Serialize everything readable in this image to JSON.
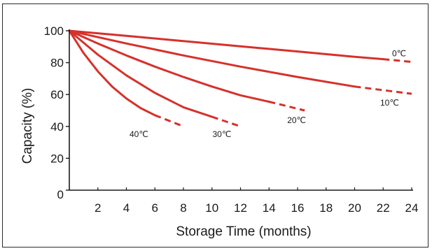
{
  "chart_data": {
    "type": "line",
    "xlabel": "Storage Time (months)",
    "ylabel": "Capacity (%)",
    "xlim": [
      0,
      24
    ],
    "ylim": [
      0,
      100
    ],
    "x_ticks": [
      "2",
      "4",
      "6",
      "8",
      "10",
      "12",
      "14",
      "16",
      "18",
      "20",
      "22",
      "24"
    ],
    "y_ticks": [
      "0",
      "20",
      "40",
      "60",
      "80",
      "100"
    ],
    "grid": false,
    "line_color": "#d6312b",
    "series": [
      {
        "name": "0℃",
        "solid": [
          [
            0,
            100
          ],
          [
            4,
            96.8
          ],
          [
            8,
            93.5
          ],
          [
            12,
            90.2
          ],
          [
            16,
            87.0
          ],
          [
            20,
            83.7
          ],
          [
            22,
            82.2
          ]
        ],
        "dashed": [
          [
            22,
            82.2
          ],
          [
            24,
            80.5
          ]
        ]
      },
      {
        "name": "10℃",
        "solid": [
          [
            0,
            100
          ],
          [
            4,
            92.0
          ],
          [
            8,
            84.5
          ],
          [
            12,
            77.5
          ],
          [
            16,
            71.0
          ],
          [
            20,
            65.0
          ]
        ],
        "dashed": [
          [
            20,
            65.0
          ],
          [
            24,
            60.5
          ]
        ]
      },
      {
        "name": "20℃",
        "solid": [
          [
            0,
            100
          ],
          [
            2,
            92.0
          ],
          [
            4,
            84.5
          ],
          [
            6,
            77.5
          ],
          [
            8,
            71.0
          ],
          [
            10,
            65.0
          ],
          [
            12,
            59.5
          ],
          [
            14,
            55.5
          ]
        ],
        "dashed": [
          [
            14,
            55.5
          ],
          [
            16.5,
            50.0
          ]
        ]
      },
      {
        "name": "30℃",
        "solid": [
          [
            0,
            100
          ],
          [
            2,
            85.0
          ],
          [
            4,
            72.0
          ],
          [
            6,
            61.0
          ],
          [
            8,
            52.0
          ],
          [
            10,
            46.0
          ]
        ],
        "dashed": [
          [
            10,
            46.0
          ],
          [
            12,
            40.0
          ]
        ]
      },
      {
        "name": "40℃",
        "solid": [
          [
            0,
            100
          ],
          [
            1,
            86.0
          ],
          [
            2,
            74.5
          ],
          [
            3,
            65.0
          ],
          [
            4,
            57.5
          ],
          [
            5,
            51.5
          ],
          [
            6,
            47.0
          ]
        ],
        "dashed": [
          [
            6,
            47.0
          ],
          [
            8,
            40.0
          ]
        ]
      }
    ]
  }
}
